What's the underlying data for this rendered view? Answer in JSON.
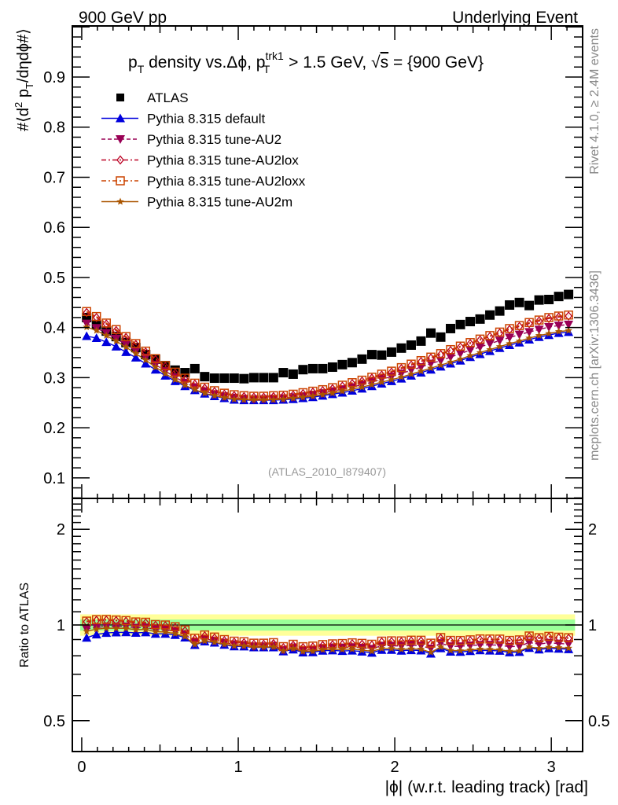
{
  "header": {
    "left_label": "900 GeV pp",
    "right_label": "Underlying Event"
  },
  "side_labels": {
    "top": "Rivet 4.1.0, ≥ 2.4M events",
    "bottom": "mcplots.cern.ch [arXiv:1306.3436]"
  },
  "chart_data": [
    {
      "panel": "main",
      "type": "scatter",
      "title": "p_T density vs.Δφ, p_T^trk1 > 1.5 GeV, √s = {900 GeV}",
      "title_parts": {
        "pre": "p",
        "sub1": "T",
        "mid": " density vs.Δϕ, p",
        "sup2": "trk1",
        "sub2": "T",
        "post1": " > 1.5 GeV, ",
        "sqrt": "√",
        "s": "s",
        "post2": " = {900 GeV}"
      },
      "xlabel": "|φ| (w.r.t. leading track) [rad]",
      "ylabel": "#⟨d² p_T/dηdφ#⟩",
      "ylabel_parts": {
        "pre": "#⟨d",
        "sup": "2",
        "mid": " p",
        "sub": "T",
        "post": "/dηdϕ#⟩"
      },
      "watermark": "(ATLAS_2010_I879407)",
      "xlim": [
        -0.06,
        3.2
      ],
      "ylim": [
        0.059,
        1.002
      ],
      "yticks": [
        0.1,
        0.2,
        0.3,
        0.4,
        0.5,
        0.6,
        0.7,
        0.8,
        0.9
      ],
      "ytick_labels": [
        "0.1",
        "0.2",
        "0.3",
        "0.4",
        "0.5",
        "0.6",
        "0.7",
        "0.8",
        "0.9"
      ],
      "xticks": [
        0,
        1,
        2,
        3
      ],
      "xtick_labels": [
        "0",
        "1",
        "2",
        "3"
      ],
      "bins": {
        "start": 0,
        "end": 3.14159,
        "count": 50
      },
      "legend_position": "top-left",
      "series": [
        {
          "name": "ATLAS",
          "marker": "filled-square",
          "line": "none",
          "color": "#000000",
          "values": [
            0.42,
            0.406,
            0.393,
            0.382,
            0.37,
            0.36,
            0.346,
            0.337,
            0.324,
            0.315,
            0.31,
            0.318,
            0.302,
            0.299,
            0.299,
            0.299,
            0.298,
            0.3,
            0.3,
            0.3,
            0.31,
            0.307,
            0.316,
            0.318,
            0.318,
            0.321,
            0.326,
            0.33,
            0.337,
            0.346,
            0.345,
            0.351,
            0.359,
            0.365,
            0.373,
            0.389,
            0.381,
            0.398,
            0.406,
            0.412,
            0.417,
            0.425,
            0.433,
            0.445,
            0.45,
            0.444,
            0.455,
            0.456,
            0.462,
            0.466
          ]
        },
        {
          "name": "Pythia 8.315 default",
          "marker": "filled-triangle-up",
          "line": "solid",
          "color": "#0000dd",
          "values": [
            0.383,
            0.379,
            0.371,
            0.362,
            0.351,
            0.34,
            0.328,
            0.316,
            0.304,
            0.293,
            0.283,
            0.275,
            0.268,
            0.263,
            0.259,
            0.256,
            0.255,
            0.255,
            0.255,
            0.255,
            0.256,
            0.257,
            0.259,
            0.261,
            0.264,
            0.267,
            0.27,
            0.274,
            0.278,
            0.283,
            0.288,
            0.293,
            0.298,
            0.304,
            0.31,
            0.316,
            0.322,
            0.328,
            0.334,
            0.341,
            0.347,
            0.353,
            0.359,
            0.365,
            0.37,
            0.376,
            0.381,
            0.385,
            0.389,
            0.391
          ]
        },
        {
          "name": "Pythia 8.315 tune-AU2",
          "marker": "filled-triangle-down",
          "line": "dashed",
          "color": "#990055",
          "values": [
            0.408,
            0.399,
            0.389,
            0.378,
            0.366,
            0.353,
            0.34,
            0.326,
            0.313,
            0.301,
            0.29,
            0.281,
            0.273,
            0.267,
            0.263,
            0.26,
            0.258,
            0.257,
            0.257,
            0.258,
            0.259,
            0.261,
            0.263,
            0.266,
            0.269,
            0.273,
            0.277,
            0.281,
            0.286,
            0.291,
            0.297,
            0.302,
            0.308,
            0.315,
            0.321,
            0.328,
            0.334,
            0.341,
            0.348,
            0.355,
            0.361,
            0.368,
            0.374,
            0.38,
            0.386,
            0.391,
            0.396,
            0.401,
            0.404,
            0.406
          ]
        },
        {
          "name": "Pythia 8.315 tune-AU2lox",
          "marker": "open-diamond",
          "line": "dash-dot",
          "color": "#bb0022",
          "values": [
            0.43,
            0.42,
            0.407,
            0.394,
            0.38,
            0.366,
            0.351,
            0.336,
            0.322,
            0.309,
            0.297,
            0.287,
            0.279,
            0.272,
            0.267,
            0.264,
            0.262,
            0.261,
            0.261,
            0.262,
            0.263,
            0.265,
            0.268,
            0.271,
            0.274,
            0.278,
            0.283,
            0.288,
            0.293,
            0.299,
            0.305,
            0.311,
            0.318,
            0.325,
            0.332,
            0.339,
            0.346,
            0.354,
            0.361,
            0.368,
            0.375,
            0.382,
            0.389,
            0.396,
            0.402,
            0.408,
            0.413,
            0.418,
            0.421,
            0.423
          ]
        },
        {
          "name": "Pythia 8.315 tune-AU2loxx",
          "marker": "open-square",
          "line": "dash-dot",
          "color": "#cc4400",
          "values": [
            0.432,
            0.422,
            0.409,
            0.396,
            0.382,
            0.368,
            0.353,
            0.338,
            0.324,
            0.311,
            0.299,
            0.289,
            0.281,
            0.274,
            0.269,
            0.266,
            0.264,
            0.263,
            0.263,
            0.264,
            0.265,
            0.267,
            0.27,
            0.273,
            0.276,
            0.28,
            0.285,
            0.29,
            0.295,
            0.301,
            0.307,
            0.313,
            0.32,
            0.327,
            0.334,
            0.341,
            0.348,
            0.356,
            0.363,
            0.37,
            0.377,
            0.384,
            0.391,
            0.398,
            0.404,
            0.41,
            0.415,
            0.42,
            0.423,
            0.425
          ]
        },
        {
          "name": "Pythia 8.315 tune-AU2m",
          "marker": "star",
          "line": "solid",
          "color": "#aa5500",
          "values": [
            0.401,
            0.394,
            0.384,
            0.373,
            0.361,
            0.348,
            0.335,
            0.321,
            0.308,
            0.296,
            0.285,
            0.276,
            0.269,
            0.264,
            0.26,
            0.257,
            0.256,
            0.256,
            0.256,
            0.256,
            0.257,
            0.259,
            0.261,
            0.263,
            0.266,
            0.269,
            0.273,
            0.277,
            0.281,
            0.286,
            0.291,
            0.296,
            0.301,
            0.307,
            0.313,
            0.319,
            0.325,
            0.331,
            0.337,
            0.344,
            0.35,
            0.356,
            0.362,
            0.368,
            0.373,
            0.379,
            0.384,
            0.388,
            0.392,
            0.394
          ]
        }
      ]
    },
    {
      "panel": "ratio",
      "type": "scatter",
      "ylabel": "Ratio to ATLAS",
      "yscale": "log",
      "ylim": [
        0.4,
        2.5
      ],
      "yticks": [
        0.5,
        1,
        2
      ],
      "ytick_labels": [
        "0.5",
        "1",
        "2"
      ],
      "xlim": [
        -0.06,
        3.2
      ],
      "xticks": [
        0,
        1,
        2,
        3
      ],
      "xtick_labels": [
        "0",
        "1",
        "2",
        "3"
      ],
      "xlabel": "|ϕ| (w.r.t. leading track) [rad]",
      "reference_line": 1,
      "bands": {
        "outer": {
          "low": 0.925,
          "high": 1.08,
          "color": "#ffff99"
        },
        "inner": {
          "low": 0.96,
          "high": 1.04,
          "color": "#99ff99"
        }
      },
      "series_source": "main-panel model values divided by ATLAS values"
    }
  ]
}
